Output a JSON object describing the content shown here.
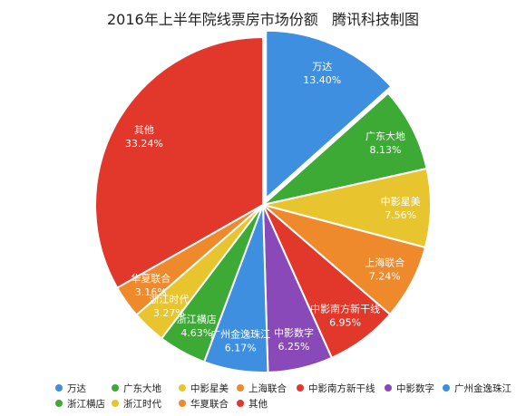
{
  "chart_data": {
    "type": "pie",
    "title": "2016年上半年院线票房市场份额   腾讯科技制图",
    "legend_position": "bottom",
    "slices": [
      {
        "name": "万达",
        "value": 13.4,
        "label": "13.40%",
        "color": "#3F8FE0"
      },
      {
        "name": "广东大地",
        "value": 8.13,
        "label": "8.13%",
        "color": "#3DAA35"
      },
      {
        "name": "中影星美",
        "value": 7.56,
        "label": "7.56%",
        "color": "#E8C52E"
      },
      {
        "name": "上海联合",
        "value": 7.24,
        "label": "7.24%",
        "color": "#EE8A2C"
      },
      {
        "name": "中影南方新干线",
        "value": 6.95,
        "label": "6.95%",
        "color": "#E2382B"
      },
      {
        "name": "中影数字",
        "value": 6.25,
        "label": "6.25%",
        "color": "#8A49B8"
      },
      {
        "name": "广州金逸珠江",
        "value": 6.17,
        "label": "6.17%",
        "color": "#3F8FE0"
      },
      {
        "name": "浙江横店",
        "value": 4.63,
        "label": "4.63%",
        "color": "#3DAA35"
      },
      {
        "name": "浙江时代",
        "value": 3.27,
        "label": "3.27%",
        "color": "#E8C52E"
      },
      {
        "name": "华夏联合",
        "value": 3.16,
        "label": "3.16%",
        "color": "#EE8A2C"
      },
      {
        "name": "其他",
        "value": 33.24,
        "label": "33.24%",
        "color": "#E2382B"
      }
    ]
  }
}
